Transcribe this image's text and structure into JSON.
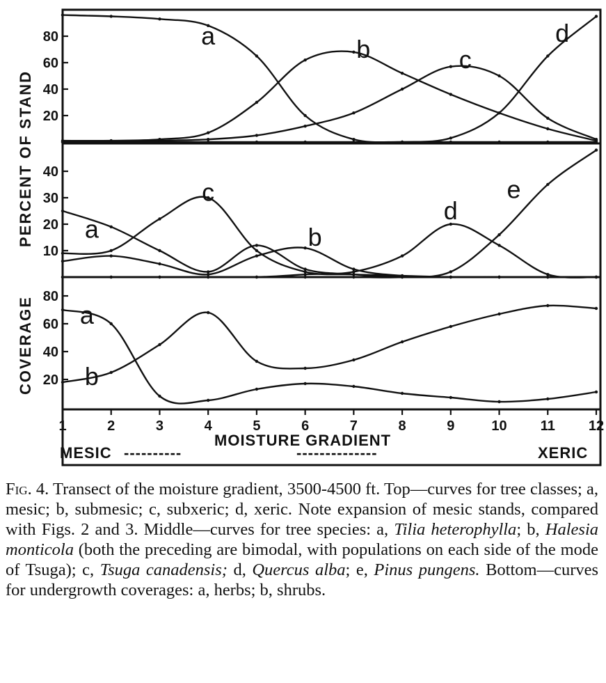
{
  "chart_data": [
    {
      "type": "line",
      "panel": "top",
      "x": [
        1,
        2,
        3,
        4,
        5,
        6,
        7,
        8,
        9,
        10,
        11,
        12
      ],
      "ylim": [
        0,
        100
      ],
      "yticks": [
        20,
        40,
        60,
        80
      ],
      "series": [
        {
          "name": "a",
          "values": [
            96,
            95,
            93,
            88,
            65,
            20,
            2,
            0,
            0,
            0,
            0,
            0
          ]
        },
        {
          "name": "b",
          "values": [
            1,
            1,
            2,
            7,
            30,
            62,
            68,
            52,
            36,
            22,
            10,
            1
          ]
        },
        {
          "name": "c",
          "values": [
            0,
            0,
            1,
            2,
            5,
            12,
            22,
            40,
            57,
            50,
            18,
            2
          ]
        },
        {
          "name": "d",
          "values": [
            0,
            0,
            0,
            0,
            0,
            0,
            0,
            0,
            3,
            22,
            65,
            95
          ]
        }
      ]
    },
    {
      "type": "line",
      "panel": "middle",
      "x": [
        1,
        2,
        3,
        4,
        5,
        6,
        7,
        8,
        9,
        10,
        11,
        12
      ],
      "ylim": [
        0,
        50
      ],
      "yticks": [
        10,
        20,
        30,
        40
      ],
      "series": [
        {
          "name": "a",
          "values": [
            25,
            19,
            10,
            2,
            12,
            3,
            1,
            0,
            0,
            0,
            0,
            0
          ]
        },
        {
          "name": "b",
          "values": [
            6,
            8,
            5,
            1,
            8,
            11,
            3,
            0.5,
            0,
            0,
            0,
            0
          ]
        },
        {
          "name": "c",
          "values": [
            9,
            10,
            22,
            30,
            10,
            2,
            1,
            0.5,
            0,
            0,
            0,
            0
          ]
        },
        {
          "name": "d",
          "values": [
            0,
            0,
            0,
            0,
            0,
            1,
            2,
            8,
            20,
            12,
            1,
            0
          ]
        },
        {
          "name": "e",
          "values": [
            0,
            0,
            0,
            0,
            0,
            0,
            0,
            0,
            2,
            16,
            35,
            48
          ]
        }
      ]
    },
    {
      "type": "line",
      "panel": "bottom",
      "x": [
        1,
        2,
        3,
        4,
        5,
        6,
        7,
        8,
        9,
        10,
        11,
        12
      ],
      "ylim": [
        0,
        95
      ],
      "yticks": [
        20,
        40,
        60,
        80
      ],
      "series": [
        {
          "name": "a",
          "values": [
            70,
            60,
            8,
            5,
            13,
            17,
            15,
            10,
            7,
            4,
            6,
            11
          ]
        },
        {
          "name": "b",
          "values": [
            18,
            25,
            45,
            68,
            33,
            28,
            34,
            47,
            58,
            67,
            73,
            71
          ]
        }
      ]
    }
  ],
  "axes": {
    "ylabel_top": "PERCENT OF STAND",
    "ylabel_bottom": "COVERAGE",
    "xlabel": "MOISTURE GRADIENT",
    "xticks": [
      "1",
      "2",
      "3",
      "4",
      "5",
      "6",
      "7",
      "8",
      "9",
      "10",
      "11",
      "12"
    ],
    "left_end": "MESIC",
    "right_end": "XERIC",
    "dashes_left": "----------",
    "dashes_right": "--------------"
  },
  "caption": {
    "fig_label": "Fig. 4.",
    "s1": "Transect of the moisture gradient, 3500-4500 ft. Top—curves for tree classes; a, mesic; b, submesic; c, subxeric; d, xeric. Note expansion of mesic stands, compared with Figs. 2 and 3. Middle—curves for tree species: a,",
    "tilia": "Tilia heterophylla",
    "s2": "; b,",
    "halesia": "Halesia monticola",
    "s3": "(both the preceding are bimodal, with populations on each side of the mode of Tsuga); c,",
    "tsuga": "Tsuga canadensis;",
    "s4": "d,",
    "quercus": "Quercus alba",
    "s5": "; e,",
    "pinus": "Pinus pungens.",
    "s6": "Bottom—curves for undergrowth coverages: a, herbs; b, shrubs."
  }
}
